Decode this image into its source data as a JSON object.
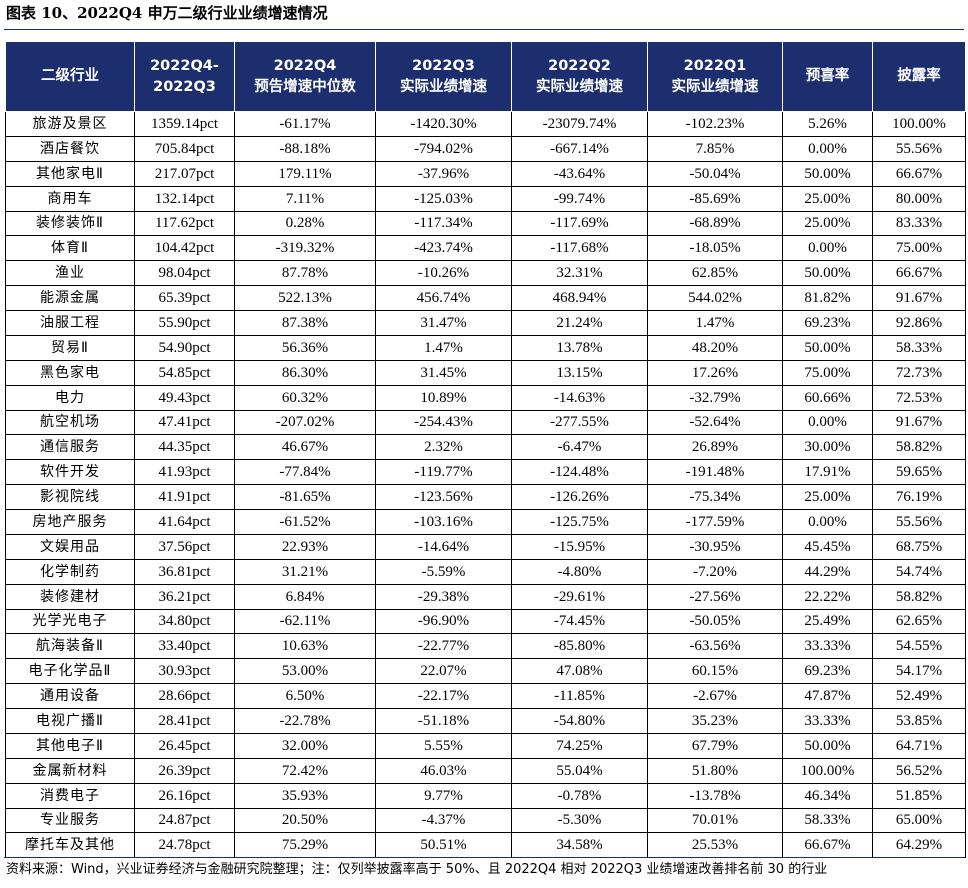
{
  "figure": {
    "title": "图表 10、2022Q4 申万二级行业业绩增速情况"
  },
  "colors": {
    "header_bg": "#1d2e6e",
    "header_text": "#ffffff",
    "border": "#000000"
  },
  "table": {
    "headers": [
      {
        "lines": [
          "二级行业"
        ]
      },
      {
        "lines": [
          "2022Q4-",
          "2022Q3"
        ]
      },
      {
        "lines": [
          "2022Q4",
          "预告增速中位数"
        ]
      },
      {
        "lines": [
          "2022Q3",
          "实际业绩增速"
        ]
      },
      {
        "lines": [
          "2022Q2",
          "实际业绩增速"
        ]
      },
      {
        "lines": [
          "2022Q1",
          "实际业绩增速"
        ]
      },
      {
        "lines": [
          "预喜率"
        ]
      },
      {
        "lines": [
          "披露率"
        ]
      }
    ],
    "rows": [
      [
        "旅游及景区",
        "1359.14pct",
        "-61.17%",
        "-1420.30%",
        "-23079.74%",
        "-102.23%",
        "5.26%",
        "100.00%"
      ],
      [
        "酒店餐饮",
        "705.84pct",
        "-88.18%",
        "-794.02%",
        "-667.14%",
        "7.85%",
        "0.00%",
        "55.56%"
      ],
      [
        "其他家电Ⅱ",
        "217.07pct",
        "179.11%",
        "-37.96%",
        "-43.64%",
        "-50.04%",
        "50.00%",
        "66.67%"
      ],
      [
        "商用车",
        "132.14pct",
        "7.11%",
        "-125.03%",
        "-99.74%",
        "-85.69%",
        "25.00%",
        "80.00%"
      ],
      [
        "装修装饰Ⅱ",
        "117.62pct",
        "0.28%",
        "-117.34%",
        "-117.69%",
        "-68.89%",
        "25.00%",
        "83.33%"
      ],
      [
        "体育Ⅱ",
        "104.42pct",
        "-319.32%",
        "-423.74%",
        "-117.68%",
        "-18.05%",
        "0.00%",
        "75.00%"
      ],
      [
        "渔业",
        "98.04pct",
        "87.78%",
        "-10.26%",
        "32.31%",
        "62.85%",
        "50.00%",
        "66.67%"
      ],
      [
        "能源金属",
        "65.39pct",
        "522.13%",
        "456.74%",
        "468.94%",
        "544.02%",
        "81.82%",
        "91.67%"
      ],
      [
        "油服工程",
        "55.90pct",
        "87.38%",
        "31.47%",
        "21.24%",
        "1.47%",
        "69.23%",
        "92.86%"
      ],
      [
        "贸易Ⅱ",
        "54.90pct",
        "56.36%",
        "1.47%",
        "13.78%",
        "48.20%",
        "50.00%",
        "58.33%"
      ],
      [
        "黑色家电",
        "54.85pct",
        "86.30%",
        "31.45%",
        "13.15%",
        "17.26%",
        "75.00%",
        "72.73%"
      ],
      [
        "电力",
        "49.43pct",
        "60.32%",
        "10.89%",
        "-14.63%",
        "-32.79%",
        "60.66%",
        "72.53%"
      ],
      [
        "航空机场",
        "47.41pct",
        "-207.02%",
        "-254.43%",
        "-277.55%",
        "-52.64%",
        "0.00%",
        "91.67%"
      ],
      [
        "通信服务",
        "44.35pct",
        "46.67%",
        "2.32%",
        "-6.47%",
        "26.89%",
        "30.00%",
        "58.82%"
      ],
      [
        "软件开发",
        "41.93pct",
        "-77.84%",
        "-119.77%",
        "-124.48%",
        "-191.48%",
        "17.91%",
        "59.65%"
      ],
      [
        "影视院线",
        "41.91pct",
        "-81.65%",
        "-123.56%",
        "-126.26%",
        "-75.34%",
        "25.00%",
        "76.19%"
      ],
      [
        "房地产服务",
        "41.64pct",
        "-61.52%",
        "-103.16%",
        "-125.75%",
        "-177.59%",
        "0.00%",
        "55.56%"
      ],
      [
        "文娱用品",
        "37.56pct",
        "22.93%",
        "-14.64%",
        "-15.95%",
        "-30.95%",
        "45.45%",
        "68.75%"
      ],
      [
        "化学制药",
        "36.81pct",
        "31.21%",
        "-5.59%",
        "-4.80%",
        "-7.20%",
        "44.29%",
        "54.74%"
      ],
      [
        "装修建材",
        "36.21pct",
        "6.84%",
        "-29.38%",
        "-29.61%",
        "-27.56%",
        "22.22%",
        "58.82%"
      ],
      [
        "光学光电子",
        "34.80pct",
        "-62.11%",
        "-96.90%",
        "-74.45%",
        "-50.05%",
        "25.49%",
        "62.65%"
      ],
      [
        "航海装备Ⅱ",
        "33.40pct",
        "10.63%",
        "-22.77%",
        "-85.80%",
        "-63.56%",
        "33.33%",
        "54.55%"
      ],
      [
        "电子化学品Ⅱ",
        "30.93pct",
        "53.00%",
        "22.07%",
        "47.08%",
        "60.15%",
        "69.23%",
        "54.17%"
      ],
      [
        "通用设备",
        "28.66pct",
        "6.50%",
        "-22.17%",
        "-11.85%",
        "-2.67%",
        "47.87%",
        "52.49%"
      ],
      [
        "电视广播Ⅱ",
        "28.41pct",
        "-22.78%",
        "-51.18%",
        "-54.80%",
        "35.23%",
        "33.33%",
        "53.85%"
      ],
      [
        "其他电子Ⅱ",
        "26.45pct",
        "32.00%",
        "5.55%",
        "74.25%",
        "67.79%",
        "50.00%",
        "64.71%"
      ],
      [
        "金属新材料",
        "26.39pct",
        "72.42%",
        "46.03%",
        "55.04%",
        "51.80%",
        "100.00%",
        "56.52%"
      ],
      [
        "消费电子",
        "26.16pct",
        "35.93%",
        "9.77%",
        "-0.78%",
        "-13.78%",
        "46.34%",
        "51.85%"
      ],
      [
        "专业服务",
        "24.87pct",
        "20.50%",
        "-4.37%",
        "-5.30%",
        "70.01%",
        "58.33%",
        "65.00%"
      ],
      [
        "摩托车及其他",
        "24.78pct",
        "75.29%",
        "50.51%",
        "34.58%",
        "25.53%",
        "66.67%",
        "64.29%"
      ]
    ]
  },
  "source": {
    "text": "资料来源：Wind，兴业证券经济与金融研究院整理；注：仅列举披露率高于 50%、且 2022Q4 相对 2022Q3 业绩增速改善排名前 30 的行业"
  }
}
